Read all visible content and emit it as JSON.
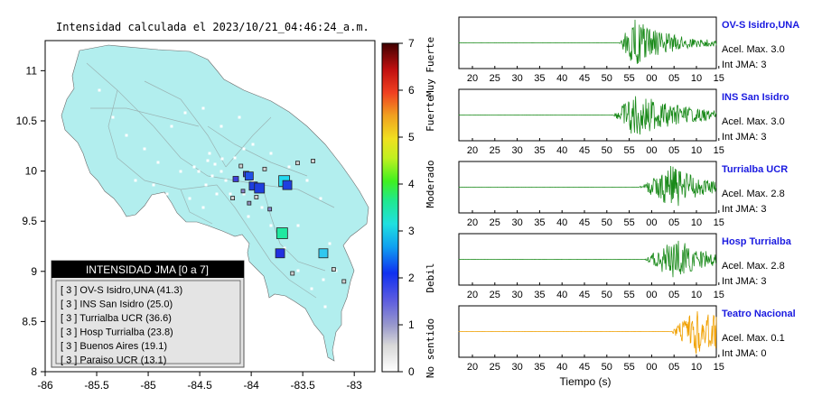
{
  "map": {
    "title": "Intensidad calculada el 2023/10/21_04:46:24_a.m.",
    "x_ticks": [
      "-86",
      "-85.5",
      "-85",
      "-84.5",
      "-84",
      "-83.5",
      "-83"
    ],
    "y_ticks": [
      "11",
      "10.5",
      "10",
      "9.5",
      "9",
      "8.5",
      "8"
    ],
    "xlim": [
      -86,
      -82.8
    ],
    "ylim": [
      8,
      11.3
    ],
    "land_color": "#b2eeee",
    "stations": [
      {
        "lon": -84.15,
        "lat": 9.92,
        "c": "#3f3fd9",
        "s": 6
      },
      {
        "lon": -84.05,
        "lat": 9.97,
        "c": "#3f3fd9",
        "s": 6
      },
      {
        "lon": -83.98,
        "lat": 9.85,
        "c": "#1f3fe0",
        "s": 9
      },
      {
        "lon": -83.92,
        "lat": 9.83,
        "c": "#1f3fe0",
        "s": 11
      },
      {
        "lon": -84.02,
        "lat": 9.95,
        "c": "#2050e8",
        "s": 9
      },
      {
        "lon": -83.68,
        "lat": 9.9,
        "c": "#20d8f0",
        "s": 12
      },
      {
        "lon": -83.65,
        "lat": 9.86,
        "c": "#1f3fe0",
        "s": 10
      },
      {
        "lon": -83.7,
        "lat": 9.38,
        "c": "#20e8a0",
        "s": 12
      },
      {
        "lon": -83.72,
        "lat": 9.18,
        "c": "#2030e0",
        "s": 10
      },
      {
        "lon": -83.3,
        "lat": 9.18,
        "c": "#30c8f0",
        "s": 10
      },
      {
        "lon": -84.08,
        "lat": 9.8,
        "c": "#8888cc",
        "s": 4
      },
      {
        "lon": -84.02,
        "lat": 9.68,
        "c": "#9090bb",
        "s": 4
      },
      {
        "lon": -83.82,
        "lat": 9.62,
        "c": "#8888cc",
        "s": 4
      },
      {
        "lon": -83.55,
        "lat": 10.08,
        "c": "#d0d0d0",
        "s": 4
      },
      {
        "lon": -83.4,
        "lat": 10.1,
        "c": "#d0d0d0",
        "s": 4
      },
      {
        "lon": -83.87,
        "lat": 10.02,
        "c": "#d0d0d0",
        "s": 4
      },
      {
        "lon": -84.1,
        "lat": 10.05,
        "c": "#d0d0d0",
        "s": 4
      },
      {
        "lon": -83.6,
        "lat": 8.98,
        "c": "#d0d0d0",
        "s": 4
      },
      {
        "lon": -83.2,
        "lat": 9.02,
        "c": "#d0d0d0",
        "s": 4
      },
      {
        "lon": -83.1,
        "lat": 8.9,
        "c": "#d0d0d0",
        "s": 4
      },
      {
        "lon": -84.18,
        "lat": 9.73,
        "c": "#d0d0d0",
        "s": 4
      },
      {
        "lon": -83.95,
        "lat": 9.74,
        "c": "#d0d0d0",
        "s": 4
      }
    ]
  },
  "colorbar": {
    "ticks": [
      "0",
      "1",
      "2",
      "3",
      "4",
      "5",
      "6",
      "7"
    ],
    "labels": [
      "No sentido",
      "Debil",
      "Moderado",
      "Fuerte",
      "Muy Fuerte"
    ]
  },
  "legend": {
    "title": "INTENSIDAD JMA [0 a 7]",
    "items": [
      "[ 3 ]  OV-S Isidro,UNA (41.3)",
      "[ 3 ]  INS San Isidro (25.0)",
      "[ 3 ]  Turrialba UCR (36.6)",
      "[ 3 ]  Hosp Turrialba (23.8)",
      "[ 3 ]  Buenos Aires (19.1)",
      "[ 3 ]  Paraiso UCR (13.1)"
    ]
  },
  "traces": {
    "tick_labels": [
      "20",
      "25",
      "30",
      "35",
      "40",
      "45",
      "50",
      "55",
      "00",
      "05",
      "10",
      "15"
    ],
    "xlabel": "Tiempo (s)",
    "panels": [
      {
        "name": "OV-S Isidro,UNA",
        "acel": "Acel. Max. 3.0",
        "jma": "Int JMA: 3",
        "color": "#1a8a1a",
        "onset": 0.62,
        "peak": 0.68,
        "decay": 0.15,
        "amp": 1.0
      },
      {
        "name": "INS San Isidro",
        "acel": "Acel. Max. 3.0",
        "jma": "Int JMA: 3",
        "color": "#1a8a1a",
        "onset": 0.6,
        "peak": 0.68,
        "decay": 0.2,
        "amp": 0.95
      },
      {
        "name": "Turrialba UCR",
        "acel": "Acel. Max. 2.8",
        "jma": "Int JMA: 3",
        "color": "#1a8a1a",
        "onset": 0.7,
        "peak": 0.83,
        "decay": 0.12,
        "amp": 0.95
      },
      {
        "name": "Hosp Turrialba",
        "acel": "Acel. Max. 2.8",
        "jma": "Int JMA: 3",
        "color": "#1a8a1a",
        "onset": 0.72,
        "peak": 0.84,
        "decay": 0.12,
        "amp": 0.95
      },
      {
        "name": "Teatro Nacional",
        "acel": "Acel. Max. 0.1",
        "jma": "Int JMA: 0",
        "color": "#f0a000",
        "onset": 0.82,
        "peak": 0.92,
        "decay": 0.3,
        "amp": 0.95
      }
    ]
  }
}
